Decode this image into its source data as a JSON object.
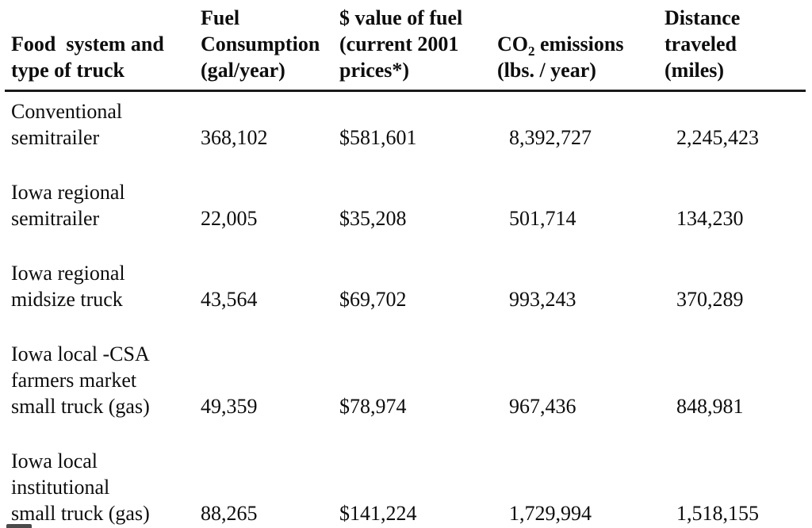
{
  "table": {
    "columns": [
      {
        "label": "Food  system and\ntype of truck"
      },
      {
        "label": "Fuel\nConsumption\n(gal/year)"
      },
      {
        "label": "$ value of fuel\n(current 2001\nprices*)"
      },
      {
        "label_prefix": "CO",
        "label_sub": "2",
        "label_suffix": " emissions",
        "label_line2": "(lbs. / year)"
      },
      {
        "label": "Distance\ntraveled\n(miles)"
      }
    ],
    "rows": [
      {
        "label": "Conventional\nsemitrailer",
        "fuel_gal": "368,102",
        "fuel_value": "$581,601",
        "co2_lbs": "8,392,727",
        "distance_miles": "2,245,423"
      },
      {
        "label": "Iowa regional\nsemitrailer",
        "fuel_gal": "22,005",
        "fuel_value": "$35,208",
        "co2_lbs": "501,714",
        "distance_miles": "134,230"
      },
      {
        "label": "Iowa regional\nmidsize truck",
        "fuel_gal": "43,564",
        "fuel_value": "$69,702",
        "co2_lbs": "993,243",
        "distance_miles": "370,289"
      },
      {
        "label": "Iowa local -CSA\nfarmers market\nsmall truck (gas)",
        "fuel_gal": "49,359",
        "fuel_value": "$78,974",
        "co2_lbs": "967,436",
        "distance_miles": "848,981"
      },
      {
        "label": "Iowa local\ninstitutional\nsmall truck (gas)",
        "fuel_gal": "88,265",
        "fuel_value": "$141,224",
        "co2_lbs": "1,729,994",
        "distance_miles": "1,518,155"
      }
    ]
  },
  "colors": {
    "background": "#ffffff",
    "text": "#0d0d0d",
    "rule": "#1a1a1a"
  }
}
